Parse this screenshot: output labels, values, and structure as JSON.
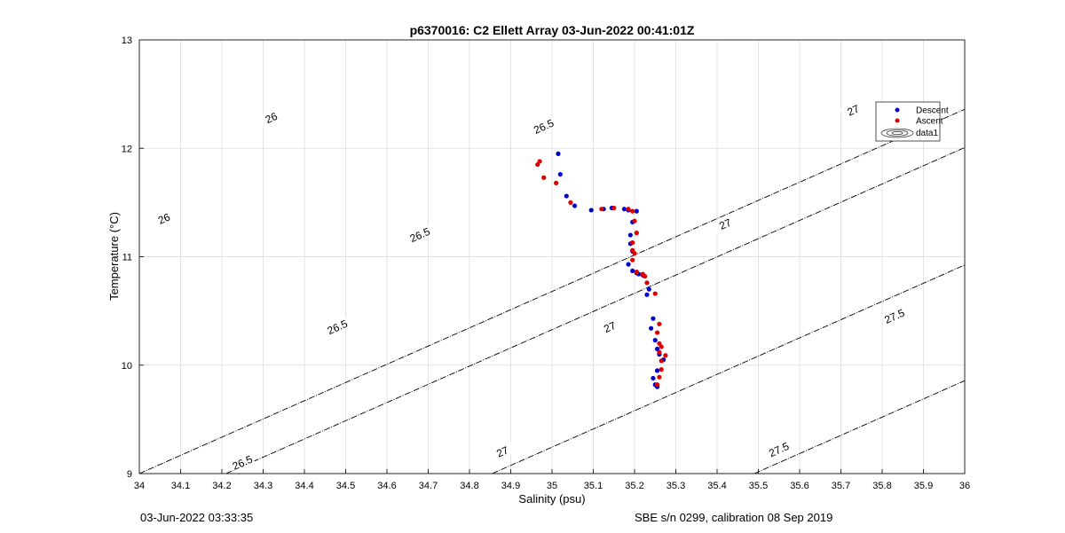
{
  "chart_data": {
    "type": "scatter",
    "title": "p6370016: C2 Ellett Array 03-Jun-2022 00:41:01Z",
    "xlabel": "Salinity (psu)",
    "ylabel": "Temperature (°C)",
    "xlim": [
      34,
      36
    ],
    "ylim": [
      9,
      13
    ],
    "x_ticks": [
      "34",
      "34.1",
      "34.2",
      "34.3",
      "34.4",
      "34.5",
      "34.6",
      "34.7",
      "34.8",
      "34.9",
      "35",
      "35.1",
      "35.2",
      "35.3",
      "35.4",
      "35.5",
      "35.6",
      "35.7",
      "35.8",
      "35.9",
      "36"
    ],
    "y_ticks": [
      "9",
      "10",
      "11",
      "12",
      "13"
    ],
    "grid": true,
    "legend_position": "top-right",
    "legend": [
      "Descent",
      "Ascent",
      "data1"
    ],
    "series": [
      {
        "name": "Descent",
        "color": "#0000cc",
        "points": [
          [
            35.015,
            11.95
          ],
          [
            35.02,
            11.76
          ],
          [
            35.035,
            11.56
          ],
          [
            35.055,
            11.47
          ],
          [
            35.095,
            11.43
          ],
          [
            35.125,
            11.44
          ],
          [
            35.145,
            11.45
          ],
          [
            35.175,
            11.44
          ],
          [
            35.185,
            11.43
          ],
          [
            35.205,
            11.42
          ],
          [
            35.195,
            11.32
          ],
          [
            35.19,
            11.2
          ],
          [
            35.19,
            11.12
          ],
          [
            35.195,
            11.05
          ],
          [
            35.185,
            10.93
          ],
          [
            35.195,
            10.87
          ],
          [
            35.205,
            10.85
          ],
          [
            35.21,
            10.84
          ],
          [
            35.22,
            10.83
          ],
          [
            35.235,
            10.7
          ],
          [
            35.23,
            10.65
          ],
          [
            35.245,
            10.43
          ],
          [
            35.24,
            10.34
          ],
          [
            35.25,
            10.23
          ],
          [
            35.255,
            10.15
          ],
          [
            35.26,
            10.1
          ],
          [
            35.27,
            10.05
          ],
          [
            35.255,
            9.95
          ],
          [
            35.245,
            9.88
          ],
          [
            35.25,
            9.82
          ],
          [
            35.255,
            9.8
          ]
        ]
      },
      {
        "name": "Ascent",
        "color": "#dd0000",
        "points": [
          [
            34.965,
            11.85
          ],
          [
            34.97,
            11.88
          ],
          [
            34.98,
            11.73
          ],
          [
            35.01,
            11.68
          ],
          [
            35.045,
            11.5
          ],
          [
            35.12,
            11.44
          ],
          [
            35.15,
            11.45
          ],
          [
            35.185,
            11.44
          ],
          [
            35.195,
            11.42
          ],
          [
            35.2,
            11.33
          ],
          [
            35.205,
            11.22
          ],
          [
            35.195,
            11.13
          ],
          [
            35.195,
            11.06
          ],
          [
            35.2,
            11.03
          ],
          [
            35.195,
            10.97
          ],
          [
            35.205,
            10.86
          ],
          [
            35.22,
            10.84
          ],
          [
            35.225,
            10.82
          ],
          [
            35.23,
            10.76
          ],
          [
            35.25,
            10.66
          ],
          [
            35.26,
            10.38
          ],
          [
            35.255,
            10.3
          ],
          [
            35.26,
            10.2
          ],
          [
            35.265,
            10.17
          ],
          [
            35.26,
            10.12
          ],
          [
            35.275,
            10.09
          ],
          [
            35.265,
            10.04
          ],
          [
            35.265,
            9.96
          ],
          [
            35.26,
            9.89
          ],
          [
            35.255,
            9.82
          ]
        ]
      }
    ],
    "density_contours": [
      {
        "label": "26"
      },
      {
        "label": "26.5"
      },
      {
        "label": "27"
      },
      {
        "label": "27.5"
      }
    ]
  },
  "footer": {
    "left": "03-Jun-2022 03:33:35",
    "right": "SBE s/n 0299, calibration 08 Sep 2019"
  }
}
